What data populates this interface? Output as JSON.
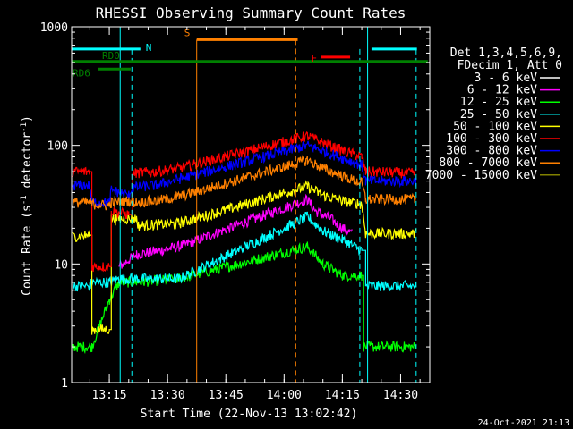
{
  "chart_data": {
    "type": "line",
    "title": "RHESSI Observing Summary Count Rates",
    "xlabel": "Start Time (22-Nov-13 13:02:42)",
    "ylabel_main": "Count Rate (s",
    "ylabel_sup1": "-1",
    "ylabel_mid": " detector",
    "ylabel_sup2": "-1",
    "ylabel_end": ")",
    "yscale": "log",
    "ylim": [
      1,
      1000
    ],
    "xlim_minutes": [
      5.3,
      97.5
    ],
    "y_ticks": [
      {
        "value": 1,
        "label": "1"
      },
      {
        "value": 10,
        "label": "10"
      },
      {
        "value": 100,
        "label": "100"
      },
      {
        "value": 1000,
        "label": "1000"
      }
    ],
    "x_ticks": [
      {
        "minutes": 15,
        "label": "13:15"
      },
      {
        "minutes": 30,
        "label": "13:30"
      },
      {
        "minutes": 45,
        "label": "13:45"
      },
      {
        "minutes": 60,
        "label": "14:00"
      },
      {
        "minutes": 75,
        "label": "14:15"
      },
      {
        "minutes": 90,
        "label": "14:30"
      }
    ],
    "legend": {
      "header": [
        "Det 1,3,4,5,6,9,",
        "FDecim 1, Att 0"
      ],
      "entries": [
        {
          "label": "3 - 6 keV",
          "color": "#ffffff"
        },
        {
          "label": "6 - 12 keV",
          "color": "#ff00ff"
        },
        {
          "label": "12 - 25 keV",
          "color": "#00ff00"
        },
        {
          "label": "25 - 50 keV",
          "color": "#00ffff"
        },
        {
          "label": "50 - 100 keV",
          "color": "#ffff00"
        },
        {
          "label": "100 - 300 keV",
          "color": "#ff0000"
        },
        {
          "label": "300 - 800 keV",
          "color": "#0000ff"
        },
        {
          "label": "800 - 7000 keV",
          "color": "#ff8000"
        },
        {
          "label": "7000 - 15000 keV",
          "color": "#808000"
        }
      ]
    },
    "segments": [
      {
        "band": "3 - 6 keV",
        "color": "#000000",
        "points": [
          [
            10.5,
            6.5
          ],
          [
            15.0,
            6.5
          ],
          [
            15.2,
            3.8
          ],
          [
            17.5,
            4.0
          ],
          [
            18.0,
            8.0
          ],
          [
            22.0,
            8.5
          ],
          [
            27.0,
            9.0
          ],
          [
            33.0,
            10.0
          ]
        ]
      },
      {
        "band": "6 - 12 keV",
        "color": "#ff00ff",
        "points": [
          [
            17.5,
            9.5
          ],
          [
            22.0,
            12.0
          ],
          [
            28.0,
            13.0
          ],
          [
            33.0,
            14.0
          ],
          [
            66.0,
            35.0
          ],
          [
            68.0,
            28.0
          ],
          [
            72.0,
            24.0
          ],
          [
            75.0,
            20.0
          ],
          [
            77.5,
            18.0
          ]
        ]
      },
      {
        "band": "12 - 25 keV",
        "color": "#00ff00",
        "points": [
          [
            5.5,
            2.0
          ],
          [
            10.5,
            2.0
          ],
          [
            15.0,
            5.0
          ],
          [
            17.5,
            7.0
          ],
          [
            22.0,
            7.0
          ],
          [
            33.0,
            7.5
          ],
          [
            66.0,
            14.0
          ],
          [
            70.0,
            10.0
          ],
          [
            75.0,
            8.0
          ],
          [
            80.0,
            8.0
          ],
          [
            80.5,
            2.0
          ],
          [
            94.0,
            2.0
          ]
        ]
      },
      {
        "band": "25 - 50 keV",
        "color": "#00ffff",
        "points": [
          [
            5.5,
            6.5
          ],
          [
            10.0,
            6.5
          ],
          [
            10.5,
            7.0
          ],
          [
            15.0,
            7.0
          ],
          [
            17.5,
            7.5
          ],
          [
            33.0,
            7.5
          ],
          [
            66.0,
            25.0
          ],
          [
            70.0,
            19.0
          ],
          [
            75.0,
            16.0
          ],
          [
            80.0,
            13.0
          ],
          [
            81.0,
            6.5
          ],
          [
            94.0,
            6.5
          ]
        ]
      },
      {
        "band": "50 - 100 keV",
        "color": "#ffff00",
        "points": [
          [
            5.5,
            17.0
          ],
          [
            10.0,
            17.5
          ],
          [
            10.5,
            2.8
          ],
          [
            15.0,
            2.8
          ],
          [
            15.5,
            24.0
          ],
          [
            22.0,
            24.0
          ],
          [
            22.5,
            21.0
          ],
          [
            33.0,
            22.0
          ],
          [
            66.0,
            45.0
          ],
          [
            70.0,
            38.0
          ],
          [
            75.0,
            34.0
          ],
          [
            80.0,
            32.0
          ],
          [
            81.0,
            18.0
          ],
          [
            94.0,
            18.0
          ]
        ]
      },
      {
        "band": "100 - 300 keV",
        "color": "#ff0000",
        "points": [
          [
            5.5,
            60.0
          ],
          [
            10.0,
            60.0
          ],
          [
            10.5,
            9.5
          ],
          [
            15.0,
            9.5
          ],
          [
            15.5,
            28.0
          ],
          [
            20.0,
            26.0
          ],
          [
            21.0,
            58.0
          ],
          [
            27.0,
            60.0
          ],
          [
            33.0,
            64.0
          ],
          [
            66.0,
            120.0
          ],
          [
            70.0,
            105.0
          ],
          [
            75.0,
            90.0
          ],
          [
            80.0,
            80.0
          ],
          [
            81.0,
            60.0
          ],
          [
            94.0,
            58.0
          ]
        ]
      },
      {
        "band": "300 - 800 keV",
        "color": "#0000ff",
        "points": [
          [
            5.5,
            46.0
          ],
          [
            10.0,
            46.0
          ],
          [
            10.5,
            33.0
          ],
          [
            15.0,
            33.0
          ],
          [
            15.5,
            42.0
          ],
          [
            20.0,
            38.0
          ],
          [
            21.0,
            44.0
          ],
          [
            27.0,
            46.0
          ],
          [
            33.0,
            52.0
          ],
          [
            66.0,
            100.0
          ],
          [
            70.0,
            90.0
          ],
          [
            75.0,
            78.0
          ],
          [
            80.0,
            68.0
          ],
          [
            81.0,
            50.0
          ],
          [
            94.0,
            50.0
          ]
        ]
      },
      {
        "band": "800 - 7000 keV",
        "color": "#ff8000",
        "points": [
          [
            5.5,
            33.0
          ],
          [
            10.0,
            33.0
          ],
          [
            10.5,
            32.0
          ],
          [
            15.0,
            31.0
          ],
          [
            15.5,
            33.0
          ],
          [
            20.0,
            34.0
          ],
          [
            21.0,
            33.0
          ],
          [
            27.0,
            34.0
          ],
          [
            33.0,
            37.0
          ],
          [
            66.0,
            75.0
          ],
          [
            70.0,
            64.0
          ],
          [
            75.0,
            55.0
          ],
          [
            80.0,
            48.0
          ],
          [
            81.0,
            35.0
          ],
          [
            94.0,
            35.0
          ]
        ]
      }
    ],
    "annotations": {
      "saa_label": "N",
      "saa_y": 650,
      "saa_spans": [
        [
          5.3,
          23.0
        ],
        [
          82.5,
          94.2
        ]
      ],
      "flare_s_label": "S",
      "flare_s_y": 780,
      "flare_s_span": [
        37.5,
        63.5
      ],
      "flare_f_label": "F",
      "flare_f_y": 555,
      "flare_f_span": [
        69.5,
        77.0
      ],
      "rd0_label": "RD0",
      "rd0_y": 510,
      "rd0_span": [
        5.3,
        97.0
      ],
      "rd6_label": "RD6",
      "rd6_y": 440,
      "rd6_span": [
        12.0,
        20.5
      ],
      "dashed_cyan_x": [
        20.8,
        79.5,
        94.0
      ],
      "solid_cyan_x": [
        17.8,
        81.5
      ],
      "orange_solid_x": 37.5,
      "orange_dashed_x": 63.0
    }
  },
  "timestamp": "24-Oct-2021 21:13",
  "colors": {
    "axis": "#ffffff",
    "cyan": "#00ffff",
    "orange": "#ff8000",
    "red": "#ff0000",
    "green": "#008000"
  }
}
